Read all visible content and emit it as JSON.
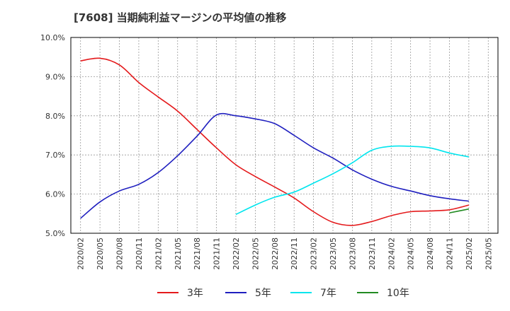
{
  "chart_data": {
    "type": "line",
    "title": "[7608]  当期純利益マージンの平均値の推移",
    "xlabel": "",
    "ylabel": "",
    "ylim": [
      5.0,
      10.0
    ],
    "y_ticks": [
      "5.0%",
      "6.0%",
      "7.0%",
      "8.0%",
      "9.0%",
      "10.0%"
    ],
    "x_ticks": [
      "2020/02",
      "2020/05",
      "2020/08",
      "2020/11",
      "2021/02",
      "2021/05",
      "2021/08",
      "2021/11",
      "2022/02",
      "2022/05",
      "2022/08",
      "2022/11",
      "2023/02",
      "2023/05",
      "2023/08",
      "2023/11",
      "2024/02",
      "2024/05",
      "2024/08",
      "2024/11",
      "2025/02",
      "2025/05"
    ],
    "grid": true,
    "legend_position": "bottom",
    "series": [
      {
        "name": "3年",
        "color": "#e41a1c",
        "points": [
          [
            "2020/02",
            9.4
          ],
          [
            "2020/05",
            9.47
          ],
          [
            "2020/08",
            9.3
          ],
          [
            "2020/11",
            8.85
          ],
          [
            "2021/02",
            8.48
          ],
          [
            "2021/05",
            8.12
          ],
          [
            "2021/08",
            7.65
          ],
          [
            "2021/11",
            7.18
          ],
          [
            "2022/02",
            6.75
          ],
          [
            "2022/05",
            6.45
          ],
          [
            "2022/08",
            6.18
          ],
          [
            "2022/11",
            5.9
          ],
          [
            "2023/02",
            5.55
          ],
          [
            "2023/05",
            5.28
          ],
          [
            "2023/08",
            5.2
          ],
          [
            "2023/11",
            5.3
          ],
          [
            "2024/02",
            5.45
          ],
          [
            "2024/05",
            5.55
          ],
          [
            "2024/08",
            5.57
          ],
          [
            "2024/11",
            5.6
          ],
          [
            "2025/02",
            5.72
          ]
        ]
      },
      {
        "name": "5年",
        "color": "#1f1fbf",
        "points": [
          [
            "2020/02",
            5.38
          ],
          [
            "2020/05",
            5.8
          ],
          [
            "2020/08",
            6.08
          ],
          [
            "2020/11",
            6.25
          ],
          [
            "2021/02",
            6.55
          ],
          [
            "2021/05",
            6.98
          ],
          [
            "2021/08",
            7.48
          ],
          [
            "2021/11",
            8.02
          ],
          [
            "2022/02",
            8.0
          ],
          [
            "2022/05",
            7.92
          ],
          [
            "2022/08",
            7.8
          ],
          [
            "2022/11",
            7.5
          ],
          [
            "2023/02",
            7.18
          ],
          [
            "2023/05",
            6.92
          ],
          [
            "2023/08",
            6.62
          ],
          [
            "2023/11",
            6.38
          ],
          [
            "2024/02",
            6.2
          ],
          [
            "2024/05",
            6.08
          ],
          [
            "2024/08",
            5.96
          ],
          [
            "2024/11",
            5.88
          ],
          [
            "2025/02",
            5.82
          ]
        ]
      },
      {
        "name": "7年",
        "color": "#00e5ee",
        "points": [
          [
            "2022/02",
            5.48
          ],
          [
            "2022/05",
            5.72
          ],
          [
            "2022/08",
            5.92
          ],
          [
            "2022/11",
            6.05
          ],
          [
            "2023/02",
            6.28
          ],
          [
            "2023/05",
            6.52
          ],
          [
            "2023/08",
            6.8
          ],
          [
            "2023/11",
            7.12
          ],
          [
            "2024/02",
            7.22
          ],
          [
            "2024/05",
            7.22
          ],
          [
            "2024/08",
            7.18
          ],
          [
            "2024/11",
            7.05
          ],
          [
            "2025/02",
            6.95
          ]
        ]
      },
      {
        "name": "10年",
        "color": "#228b22",
        "points": [
          [
            "2024/11",
            5.52
          ],
          [
            "2025/02",
            5.62
          ]
        ]
      }
    ]
  }
}
